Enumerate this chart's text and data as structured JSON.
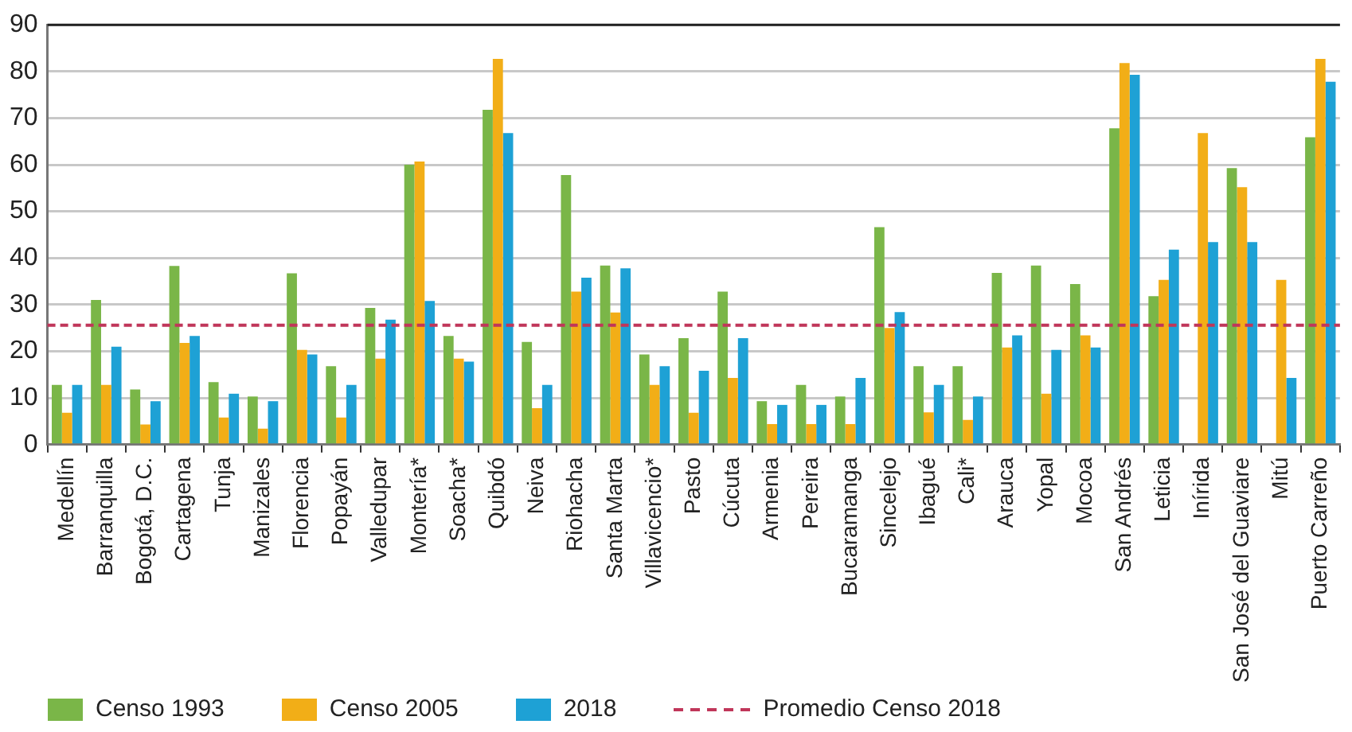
{
  "chart_data": {
    "type": "bar",
    "categories": [
      "Medellín",
      "Barranquilla",
      "Bogotá, D.C.",
      "Cartagena",
      "Tunja",
      "Manizales",
      "Florencia",
      "Popayán",
      "Valledupar",
      "Montería*",
      "Soacha*",
      "Quibdó",
      "Neiva",
      "Riohacha",
      "Santa Marta",
      "Villavicencio*",
      "Pasto",
      "Cúcuta",
      "Armenia",
      "Pereira",
      "Bucaramanga",
      "Sincelejo",
      "Ibagué",
      "Cali*",
      "Arauca",
      "Yopal",
      "Mocoa",
      "San Andrés",
      "Leticia",
      "Inírida",
      "San José del Guaviare",
      "Mitú",
      "Puerto Carreño"
    ],
    "series": [
      {
        "name": "Censo 1993",
        "color": "#7ab648",
        "values": [
          12.8,
          31,
          11.8,
          38.3,
          13.4,
          10.3,
          36.7,
          16.8,
          29.3,
          60,
          23.3,
          71.8,
          22,
          57.8,
          38.4,
          19.3,
          22.8,
          32.8,
          9.3,
          12.8,
          10.3,
          46.6,
          16.8,
          16.8,
          36.8,
          38.4,
          34.4,
          67.8,
          31.8,
          null,
          59.3,
          null,
          65.9
        ]
      },
      {
        "name": "Censo 2005",
        "color": "#f2ae17",
        "values": [
          6.8,
          12.8,
          4.3,
          21.8,
          5.8,
          3.4,
          20.3,
          5.8,
          18.4,
          60.7,
          18.4,
          82.7,
          7.8,
          32.8,
          28.3,
          12.8,
          6.8,
          14.3,
          4.4,
          4.4,
          4.4,
          25,
          6.9,
          5.3,
          20.8,
          10.9,
          23.4,
          81.8,
          35.3,
          66.8,
          55.2,
          35.3,
          82.7
        ]
      },
      {
        "name": "2018",
        "color": "#1ea1d5",
        "values": [
          12.8,
          21,
          9.3,
          23.3,
          10.9,
          9.3,
          19.3,
          12.8,
          26.8,
          30.8,
          17.8,
          66.8,
          12.8,
          35.8,
          37.8,
          16.8,
          15.8,
          22.8,
          8.5,
          8.5,
          14.3,
          28.4,
          12.8,
          10.3,
          23.4,
          20.3,
          20.8,
          79.3,
          41.8,
          43.4,
          43.4,
          14.3,
          77.8
        ]
      }
    ],
    "ylim": [
      0,
      90
    ],
    "yticks": [
      0,
      10,
      20,
      30,
      40,
      50,
      60,
      70,
      80,
      90
    ],
    "grid": "y",
    "legend": "bottom",
    "ref_lines": [
      {
        "axis": "y",
        "value": 25.6,
        "label": "Promedio Censo 2018",
        "color": "#c0365a",
        "line_style": "dashed"
      }
    ]
  }
}
